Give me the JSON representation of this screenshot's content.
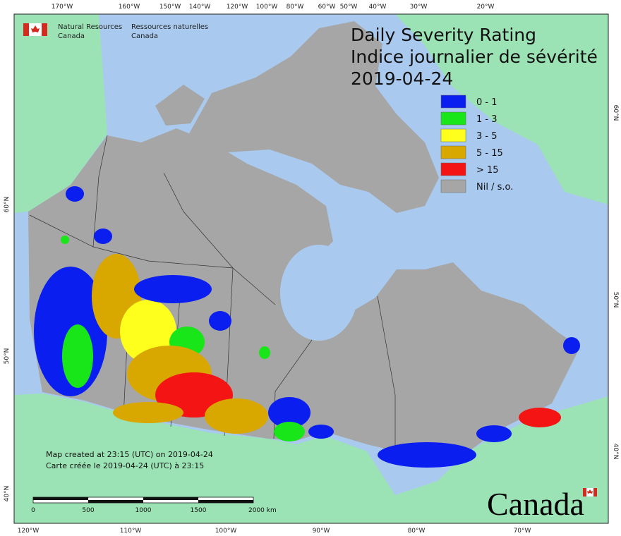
{
  "header": {
    "org_en_1": "Natural Resources",
    "org_en_2": "Canada",
    "org_fr_1": "Ressources naturelles",
    "org_fr_2": "Canada"
  },
  "title": {
    "line1": "Daily Severity Rating",
    "line2": "Indice journalier de sévérité",
    "date": "2019-04-24"
  },
  "legend": [
    {
      "label": "0 - 1",
      "color": "#0a1ef0"
    },
    {
      "label": "1 - 3",
      "color": "#19e619"
    },
    {
      "label": "3 - 5",
      "color": "#ffff1e"
    },
    {
      "label": "5 - 15",
      "color": "#d9a800"
    },
    {
      "label": "> 15",
      "color": "#f51414"
    },
    {
      "label": "Nil / s.o.",
      "color": "#a6a6a6"
    }
  ],
  "graticule": {
    "top": [
      "170°W",
      "160°W",
      "150°W",
      "140°W",
      "120°W",
      "100°W",
      "80°W",
      "60°W",
      "50°W",
      "40°W",
      "30°W",
      "20°W"
    ],
    "bottom": [
      "120°W",
      "110°W",
      "100°W",
      "90°W",
      "80°W",
      "70°W"
    ],
    "left": [
      "60°N",
      "50°N",
      "40°N"
    ],
    "right": [
      "60°N",
      "50°N",
      "40°N"
    ]
  },
  "footer": {
    "line1": "Map created at 23:15 (UTC) on 2019-04-24",
    "line2": "Carte créée le 2019-04-24 (UTC) à 23:15"
  },
  "scale_bar": {
    "labels": [
      "0",
      "500",
      "1000",
      "1500",
      "2000 km"
    ]
  },
  "wordmark": "Canada"
}
